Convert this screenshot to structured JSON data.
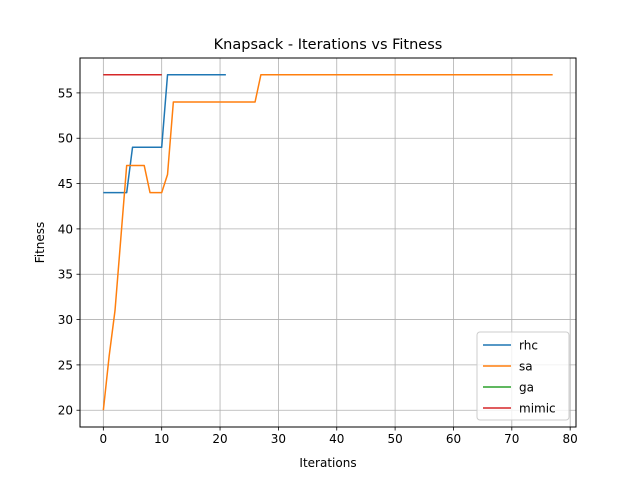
{
  "chart_data": {
    "type": "line",
    "title": "Knapsack - Iterations vs Fitness",
    "xlabel": "Iterations",
    "ylabel": "Fitness",
    "xlim": [
      -4,
      81
    ],
    "ylim": [
      18.15,
      58.85
    ],
    "xticks": [
      0,
      10,
      20,
      30,
      40,
      50,
      60,
      70,
      80
    ],
    "yticks": [
      20,
      25,
      30,
      35,
      40,
      45,
      50,
      55
    ],
    "grid": true,
    "legend_position": "lower-right",
    "series": [
      {
        "name": "rhc",
        "color": "#1f77b4",
        "x": [
          0,
          1,
          2,
          3,
          4,
          5,
          6,
          7,
          8,
          9,
          10,
          11,
          12,
          13,
          14,
          15,
          16,
          17,
          18,
          19,
          20,
          21
        ],
        "y": [
          44,
          44,
          44,
          44,
          44,
          49,
          49,
          49,
          49,
          49,
          49,
          57,
          57,
          57,
          57,
          57,
          57,
          57,
          57,
          57,
          57,
          57
        ]
      },
      {
        "name": "sa",
        "color": "#ff7f0e",
        "x": [
          0,
          1,
          2,
          3,
          4,
          5,
          6,
          7,
          8,
          9,
          10,
          11,
          12,
          13,
          14,
          15,
          16,
          17,
          18,
          19,
          20,
          21,
          22,
          23,
          24,
          25,
          26,
          27,
          28,
          77
        ],
        "y": [
          20,
          26,
          31,
          39,
          47,
          47,
          47,
          47,
          44,
          44,
          44,
          46,
          54,
          54,
          54,
          54,
          54,
          54,
          54,
          54,
          54,
          54,
          54,
          54,
          54,
          54,
          54,
          57,
          57,
          57
        ]
      },
      {
        "name": "ga",
        "color": "#2ca02c",
        "x": [
          0,
          1,
          2,
          3,
          4,
          5,
          6,
          7,
          8,
          9,
          10
        ],
        "y": [
          57,
          57,
          57,
          57,
          57,
          57,
          57,
          57,
          57,
          57,
          57
        ]
      },
      {
        "name": "mimic",
        "color": "#d62728",
        "x": [
          0,
          1,
          2,
          3,
          4,
          5,
          6,
          7,
          8,
          9,
          10
        ],
        "y": [
          57,
          57,
          57,
          57,
          57,
          57,
          57,
          57,
          57,
          57,
          57
        ]
      }
    ]
  }
}
